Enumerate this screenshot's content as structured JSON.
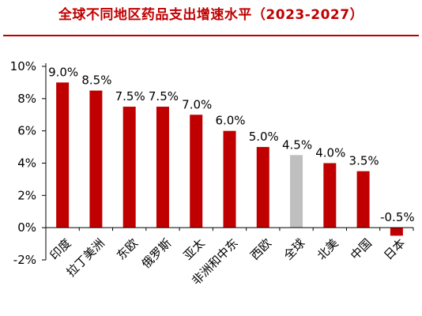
{
  "chart_data": {
    "type": "bar",
    "title": "全球不同地区药品支出增速水平（2023-2027）",
    "xlabel": "",
    "ylabel": "",
    "categories": [
      "印度",
      "拉丁美洲",
      "东欧",
      "俄罗斯",
      "亚太",
      "非洲和中东",
      "西欧",
      "全球",
      "北美",
      "中国",
      "日本"
    ],
    "values": [
      9.0,
      8.5,
      7.5,
      7.5,
      7.0,
      6.0,
      5.0,
      4.5,
      4.0,
      3.5,
      -0.5
    ],
    "value_labels": [
      "9.0%",
      "8.5%",
      "7.5%",
      "7.5%",
      "7.0%",
      "6.0%",
      "5.0%",
      "4.5%",
      "4.0%",
      "3.5%",
      "-0.5%"
    ],
    "ylim": [
      -2,
      10
    ],
    "yticks": [
      10,
      8,
      6,
      4,
      2,
      0,
      -2
    ],
    "ytick_labels": [
      "10%",
      "8%",
      "6%",
      "4%",
      "2%",
      "0%",
      "-2%"
    ],
    "grid": false,
    "highlight_index": 7,
    "colors": {
      "bar": "#C00000",
      "highlight": "#BFBFBF",
      "title": "#C00000",
      "rule": "#C00000",
      "axis": "#000000"
    }
  }
}
